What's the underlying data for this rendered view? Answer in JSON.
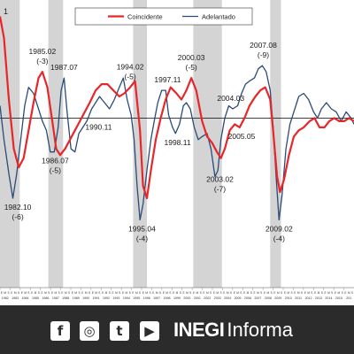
{
  "chart_data": {
    "type": "line",
    "xlim": [
      1980.9,
      2016.8
    ],
    "ylim": [
      94.5,
      103.6
    ],
    "trend_value": 100,
    "legend_position": "top-center",
    "series": [
      {
        "name": "Coincidente",
        "color": "#e8262a",
        "points": [
          [
            1980.9,
            103.3
          ],
          [
            1981.3,
            102.6
          ],
          [
            1981.8,
            100.6
          ],
          [
            1982.3,
            99.0
          ],
          [
            1982.8,
            98.4
          ],
          [
            1983.3,
            98.7
          ],
          [
            1983.8,
            99.6
          ],
          [
            1984.3,
            100.5
          ],
          [
            1984.8,
            101.3
          ],
          [
            1985.2,
            101.5
          ],
          [
            1985.7,
            101.0
          ],
          [
            1986.2,
            99.9
          ],
          [
            1986.6,
            99.0
          ],
          [
            1987.0,
            98.8
          ],
          [
            1987.5,
            99.0
          ],
          [
            1988.0,
            99.3
          ],
          [
            1988.5,
            99.6
          ],
          [
            1989.0,
            99.9
          ],
          [
            1989.5,
            100.2
          ],
          [
            1990.0,
            100.5
          ],
          [
            1990.6,
            100.9
          ],
          [
            1991.2,
            101.1
          ],
          [
            1991.8,
            101.1
          ],
          [
            1992.4,
            100.9
          ],
          [
            1993.0,
            100.7
          ],
          [
            1993.5,
            100.8
          ],
          [
            1994.1,
            101.0
          ],
          [
            1994.6,
            101.2
          ],
          [
            1995.1,
            99.6
          ],
          [
            1995.4,
            97.8
          ],
          [
            1995.8,
            97.4
          ],
          [
            1996.2,
            98.3
          ],
          [
            1996.7,
            99.3
          ],
          [
            1997.2,
            100.0
          ],
          [
            1997.7,
            100.6
          ],
          [
            1998.2,
            101.0
          ],
          [
            1998.8,
            100.8
          ],
          [
            1999.3,
            100.6
          ],
          [
            1999.8,
            100.9
          ],
          [
            2000.3,
            101.3
          ],
          [
            2000.8,
            100.9
          ],
          [
            2001.4,
            99.9
          ],
          [
            2001.9,
            99.4
          ],
          [
            2002.4,
            99.2
          ],
          [
            2002.9,
            98.9
          ],
          [
            2003.3,
            98.7
          ],
          [
            2003.7,
            99.0
          ],
          [
            2004.2,
            99.6
          ],
          [
            2004.7,
            99.8
          ],
          [
            2005.2,
            99.7
          ],
          [
            2005.7,
            100.0
          ],
          [
            2006.2,
            100.4
          ],
          [
            2006.8,
            100.7
          ],
          [
            2007.3,
            100.9
          ],
          [
            2007.8,
            101.0
          ],
          [
            2008.3,
            100.6
          ],
          [
            2008.6,
            99.6
          ],
          [
            2009.0,
            98.1
          ],
          [
            2009.3,
            97.6
          ],
          [
            2009.7,
            98.0
          ],
          [
            2010.2,
            98.8
          ],
          [
            2010.7,
            99.4
          ],
          [
            2011.2,
            99.6
          ],
          [
            2011.7,
            99.7
          ],
          [
            2012.3,
            99.9
          ],
          [
            2012.8,
            100.0
          ],
          [
            2013.3,
            99.7
          ],
          [
            2013.8,
            99.7
          ],
          [
            2014.3,
            99.9
          ],
          [
            2014.8,
            100.0
          ],
          [
            2015.3,
            99.9
          ],
          [
            2015.8,
            99.9
          ],
          [
            2016.3,
            100.0
          ],
          [
            2016.8,
            99.9
          ]
        ]
      },
      {
        "name": "Adelantado",
        "color": "#2a4b78",
        "points": [
          [
            1980.9,
            100.4
          ],
          [
            1981.3,
            99.3
          ],
          [
            1981.8,
            98.2
          ],
          [
            1982.2,
            97.4
          ],
          [
            1982.6,
            98.2
          ],
          [
            1983.0,
            99.3
          ],
          [
            1983.4,
            100.4
          ],
          [
            1983.8,
            101.0
          ],
          [
            1984.3,
            100.8
          ],
          [
            1984.8,
            100.3
          ],
          [
            1985.2,
            99.9
          ],
          [
            1985.6,
            99.6
          ],
          [
            1986.0,
            98.9
          ],
          [
            1986.4,
            98.9
          ],
          [
            1986.8,
            99.7
          ],
          [
            1987.1,
            100.9
          ],
          [
            1987.4,
            101.3
          ],
          [
            1987.7,
            100.2
          ],
          [
            1988.1,
            99.0
          ],
          [
            1988.5,
            98.9
          ],
          [
            1988.9,
            99.5
          ],
          [
            1989.3,
            99.7
          ],
          [
            1989.7,
            99.9
          ],
          [
            1990.2,
            100.3
          ],
          [
            1990.6,
            100.5
          ],
          [
            1991.0,
            100.7
          ],
          [
            1991.5,
            100.5
          ],
          [
            1992.0,
            100.3
          ],
          [
            1992.5,
            100.6
          ],
          [
            1993.0,
            101.0
          ],
          [
            1993.4,
            101.3
          ],
          [
            1993.8,
            100.6
          ],
          [
            1994.2,
            100.1
          ],
          [
            1994.5,
            99.3
          ],
          [
            1994.8,
            97.8
          ],
          [
            1995.1,
            96.7
          ],
          [
            1995.4,
            97.2
          ],
          [
            1995.8,
            98.3
          ],
          [
            1996.2,
            99.3
          ],
          [
            1996.6,
            100.0
          ],
          [
            1996.9,
            100.5
          ],
          [
            1997.3,
            100.9
          ],
          [
            1997.7,
            100.9
          ],
          [
            1998.0,
            100.1
          ],
          [
            1998.4,
            99.7
          ],
          [
            1998.7,
            99.5
          ],
          [
            1999.1,
            99.8
          ],
          [
            1999.5,
            100.4
          ],
          [
            1999.8,
            100.5
          ],
          [
            2000.2,
            100.3
          ],
          [
            2000.6,
            99.7
          ],
          [
            2001.0,
            99.3
          ],
          [
            2001.4,
            99.4
          ],
          [
            2001.9,
            99.5
          ],
          [
            2002.3,
            99.0
          ],
          [
            2002.7,
            98.1
          ],
          [
            2003.0,
            98.3
          ],
          [
            2003.3,
            99.3
          ],
          [
            2003.7,
            100.0
          ],
          [
            2004.1,
            100.4
          ],
          [
            2004.5,
            100.3
          ],
          [
            2005.0,
            100.4
          ],
          [
            2005.4,
            100.8
          ],
          [
            2005.8,
            101.1
          ],
          [
            2006.2,
            101.2
          ],
          [
            2006.7,
            101.3
          ],
          [
            2007.1,
            101.6
          ],
          [
            2007.5,
            101.7
          ],
          [
            2007.9,
            101.5
          ],
          [
            2008.3,
            100.9
          ],
          [
            2008.6,
            99.7
          ],
          [
            2008.9,
            98.1
          ],
          [
            2009.2,
            96.7
          ],
          [
            2009.5,
            97.5
          ],
          [
            2009.9,
            99.0
          ],
          [
            2010.3,
            99.8
          ],
          [
            2010.8,
            100.3
          ],
          [
            2011.2,
            100.7
          ],
          [
            2011.7,
            100.8
          ],
          [
            2012.2,
            100.6
          ],
          [
            2012.7,
            100.2
          ],
          [
            2013.1,
            100.0
          ],
          [
            2013.5,
            100.3
          ],
          [
            2014.0,
            100.5
          ],
          [
            2014.5,
            100.3
          ],
          [
            2015.0,
            100.2
          ],
          [
            2015.5,
            99.9
          ],
          [
            2016.0,
            100.2
          ],
          [
            2016.5,
            100.0
          ],
          [
            2016.8,
            99.8
          ]
        ]
      }
    ],
    "recession_bands": [
      [
        1980.9,
        1982.9
      ],
      [
        1985.8,
        1987.3
      ],
      [
        1994.4,
        1995.8
      ],
      [
        2000.5,
        2003.4
      ],
      [
        2008.3,
        2009.4
      ]
    ],
    "annotations": [
      {
        "date": "1985.02",
        "lag": "(-3)",
        "x": 1985.2,
        "y": 101.5,
        "pos": "above"
      },
      {
        "date": "1987.07",
        "lag": "",
        "x": 1987.4,
        "y": 101.3,
        "pos": "above"
      },
      {
        "date": "1994.02",
        "lag": "(-5)",
        "x": 1994.1,
        "y": 101.0,
        "pos": "above"
      },
      {
        "date": "1997.11",
        "lag": "",
        "x": 1997.9,
        "y": 100.9,
        "pos": "above"
      },
      {
        "date": "2000.03",
        "lag": "(-5)",
        "x": 2000.3,
        "y": 101.3,
        "pos": "above"
      },
      {
        "date": "2004.03",
        "lag": "",
        "x": 2004.3,
        "y": 100.3,
        "pos": "above"
      },
      {
        "date": "2007.08",
        "lag": "(-9)",
        "x": 2007.6,
        "y": 101.7,
        "pos": "above"
      },
      {
        "date": "1990.11",
        "lag": "",
        "x": 1990.9,
        "y": 100.0,
        "pos": "below"
      },
      {
        "date": "1986.07",
        "lag": "(-5)",
        "x": 1986.5,
        "y": 98.9,
        "pos": "below"
      },
      {
        "date": "1998.11",
        "lag": "",
        "x": 1998.9,
        "y": 99.5,
        "pos": "below"
      },
      {
        "date": "2005.05",
        "lag": "",
        "x": 2005.4,
        "y": 99.7,
        "pos": "below"
      },
      {
        "date": "2003.02",
        "lag": "(-7)",
        "x": 2003.2,
        "y": 98.3,
        "pos": "below"
      },
      {
        "date": "1982.10",
        "lag": "(-6)",
        "x": 1982.7,
        "y": 97.4,
        "pos": "below"
      },
      {
        "date": "1995.04",
        "lag": "(-4)",
        "x": 1995.3,
        "y": 96.7,
        "pos": "below"
      },
      {
        "date": "2009.02",
        "lag": "(-4)",
        "x": 2009.2,
        "y": 96.7,
        "pos": "below"
      }
    ],
    "corner_label": "1",
    "x_tick_years": [
      "1982",
      "1983",
      "1984",
      "1985",
      "1986",
      "1987",
      "1988",
      "1989",
      "1990",
      "1991",
      "1992",
      "1993",
      "1994",
      "1995",
      "1996",
      "1997",
      "1998",
      "1999",
      "2000",
      "2001",
      "2002",
      "2003",
      "2004",
      "2005",
      "2006",
      "2007",
      "2008",
      "2009",
      "2010",
      "2011",
      "2012",
      "2013",
      "2014",
      "2015",
      "201"
    ],
    "x_tick_months": [
      "E",
      "M",
      "S"
    ]
  },
  "footer": {
    "background": "#2b2b2b",
    "icons": [
      {
        "name": "facebook-icon",
        "glyph": "f"
      },
      {
        "name": "instagram-icon",
        "glyph": "◎"
      },
      {
        "name": "twitter-icon",
        "glyph": "t"
      },
      {
        "name": "youtube-icon",
        "glyph": "▶"
      }
    ],
    "brand_bold": "INEGI",
    "brand_light": "Informa"
  }
}
